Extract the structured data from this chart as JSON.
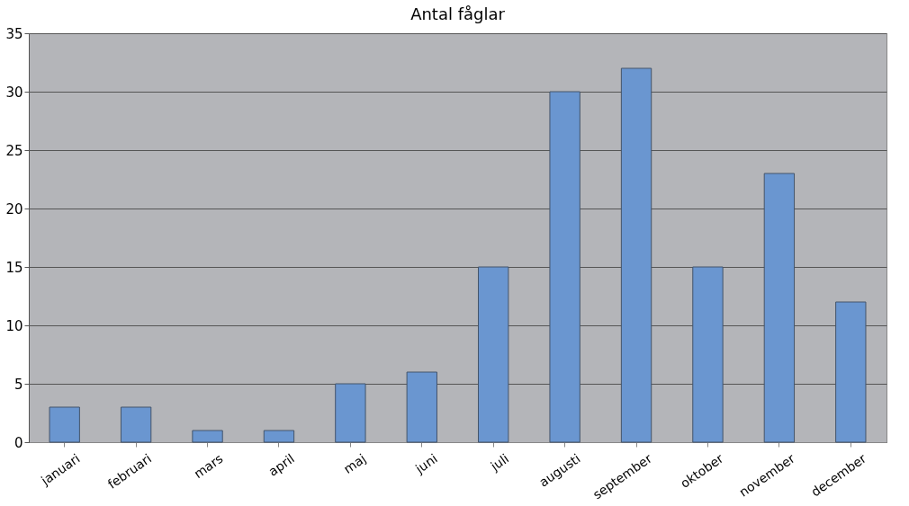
{
  "chart_data": {
    "type": "bar",
    "title": "Antal fåglar",
    "categories": [
      "januari",
      "februari",
      "mars",
      "april",
      "maj",
      "juni",
      "juli",
      "augusti",
      "september",
      "oktober",
      "november",
      "december"
    ],
    "values": [
      3,
      3,
      1,
      1,
      5,
      6,
      15,
      30,
      32,
      15,
      23,
      12
    ],
    "color": "#6a96d0",
    "ylim": [
      0,
      35
    ],
    "yticks": [
      0,
      5,
      10,
      15,
      20,
      25,
      30,
      35
    ],
    "grid": "y"
  }
}
